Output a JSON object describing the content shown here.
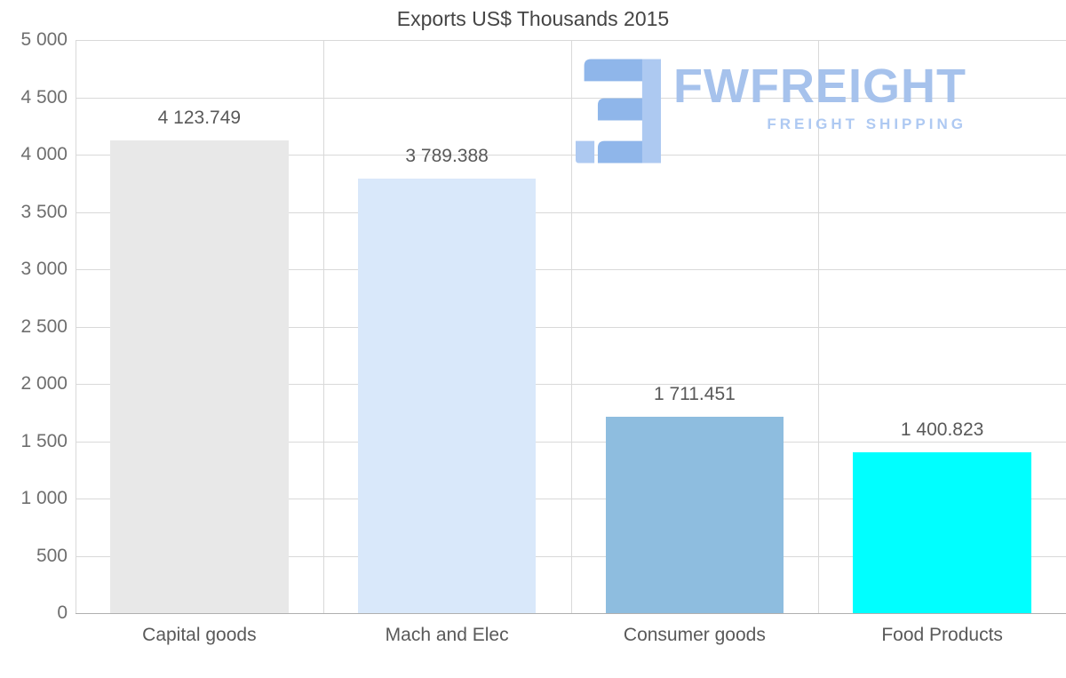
{
  "title": "Exports US$ Thousands 2015",
  "watermark": {
    "brand": "FWFREIGHT",
    "tagline": "FREIGHT SHIPPING",
    "brand_color": "#a6c2ec",
    "tagline_color": "#aec9f2",
    "icon_main_color": "#8fb6ea",
    "icon_accent_color": "#adc9f1"
  },
  "chart_data": {
    "type": "bar",
    "title": "Exports US$ Thousands 2015",
    "categories": [
      "Capital goods",
      "Mach and Elec",
      "Consumer goods",
      "Food Products"
    ],
    "values": [
      4123.749,
      3789.388,
      1711.451,
      1400.823
    ],
    "value_labels": [
      "4 123.749",
      "3 789.388",
      "1 711.451",
      "1 400.823"
    ],
    "bar_colors": [
      "#e8e8e8",
      "#d9e8fa",
      "#8ebddf",
      "#00ffff"
    ],
    "xlabel": "",
    "ylabel": "",
    "ylim": [
      0,
      5000
    ],
    "ytick_step": 500,
    "ytick_labels": [
      "0",
      "500",
      "1 000",
      "1 500",
      "2 000",
      "2 500",
      "3 000",
      "3 500",
      "4 000",
      "4 500",
      "5 000"
    ],
    "grid": true,
    "legend": false
  }
}
